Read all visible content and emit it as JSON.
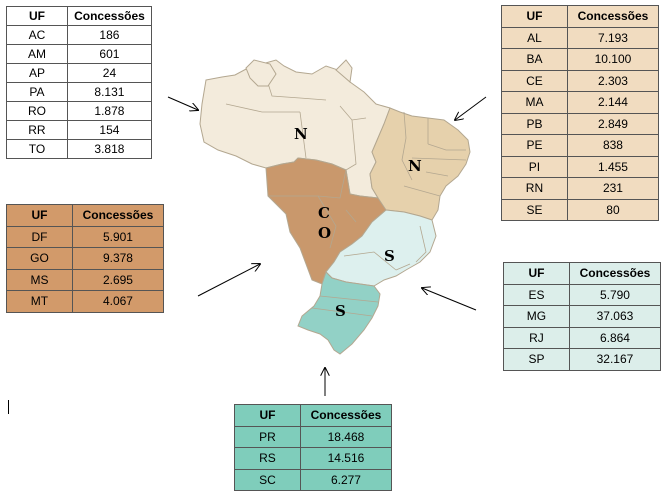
{
  "tables": {
    "north": {
      "headers": [
        "UF",
        "Concessões"
      ],
      "rows": [
        [
          "AC",
          "186"
        ],
        [
          "AM",
          "601"
        ],
        [
          "AP",
          "24"
        ],
        [
          "PA",
          "8.131"
        ],
        [
          "RO",
          "1.878"
        ],
        [
          "RR",
          "154"
        ],
        [
          "TO",
          "3.818"
        ]
      ]
    },
    "northeast": {
      "headers": [
        "UF",
        "Concessões"
      ],
      "rows": [
        [
          "AL",
          "7.193"
        ],
        [
          "BA",
          "10.100"
        ],
        [
          "CE",
          "2.303"
        ],
        [
          "MA",
          "2.144"
        ],
        [
          "PB",
          "2.849"
        ],
        [
          "PE",
          "838"
        ],
        [
          "PI",
          "1.455"
        ],
        [
          "RN",
          "231"
        ],
        [
          "SE",
          "80"
        ]
      ]
    },
    "centerwest": {
      "headers": [
        "UF",
        "Concessões"
      ],
      "rows": [
        [
          "DF",
          "5.901"
        ],
        [
          "GO",
          "9.378"
        ],
        [
          "MS",
          "2.695"
        ],
        [
          "MT",
          "4.067"
        ]
      ]
    },
    "southeast": {
      "headers": [
        "UF",
        "Concessões"
      ],
      "rows": [
        [
          "ES",
          "5.790"
        ],
        [
          "MG",
          "37.063"
        ],
        [
          "RJ",
          "6.864"
        ],
        [
          "SP",
          "32.167"
        ]
      ]
    },
    "south": {
      "headers": [
        "UF",
        "Concessões"
      ],
      "rows": [
        [
          "PR",
          "18.468"
        ],
        [
          "RS",
          "14.516"
        ],
        [
          "SC",
          "6.277"
        ]
      ]
    }
  },
  "map": {
    "labels": {
      "north": "N",
      "northeast": "N",
      "centerwest_c": "C",
      "centerwest_o": "O",
      "southeast": "S",
      "south": "S"
    },
    "colors": {
      "north": "#f3ebdc",
      "northeast": "#e6d1ac",
      "centerwest": "#c9986c",
      "southeast": "#ddf0ee",
      "south": "#92d1c6",
      "border": "#b3a790",
      "nort_header": "#ffffff",
      "northeast_table": "#f1dcc0",
      "centerwest_table": "#d29a6a",
      "southeast_table": "#dceeea",
      "south_table": "#7fcdbb"
    }
  }
}
